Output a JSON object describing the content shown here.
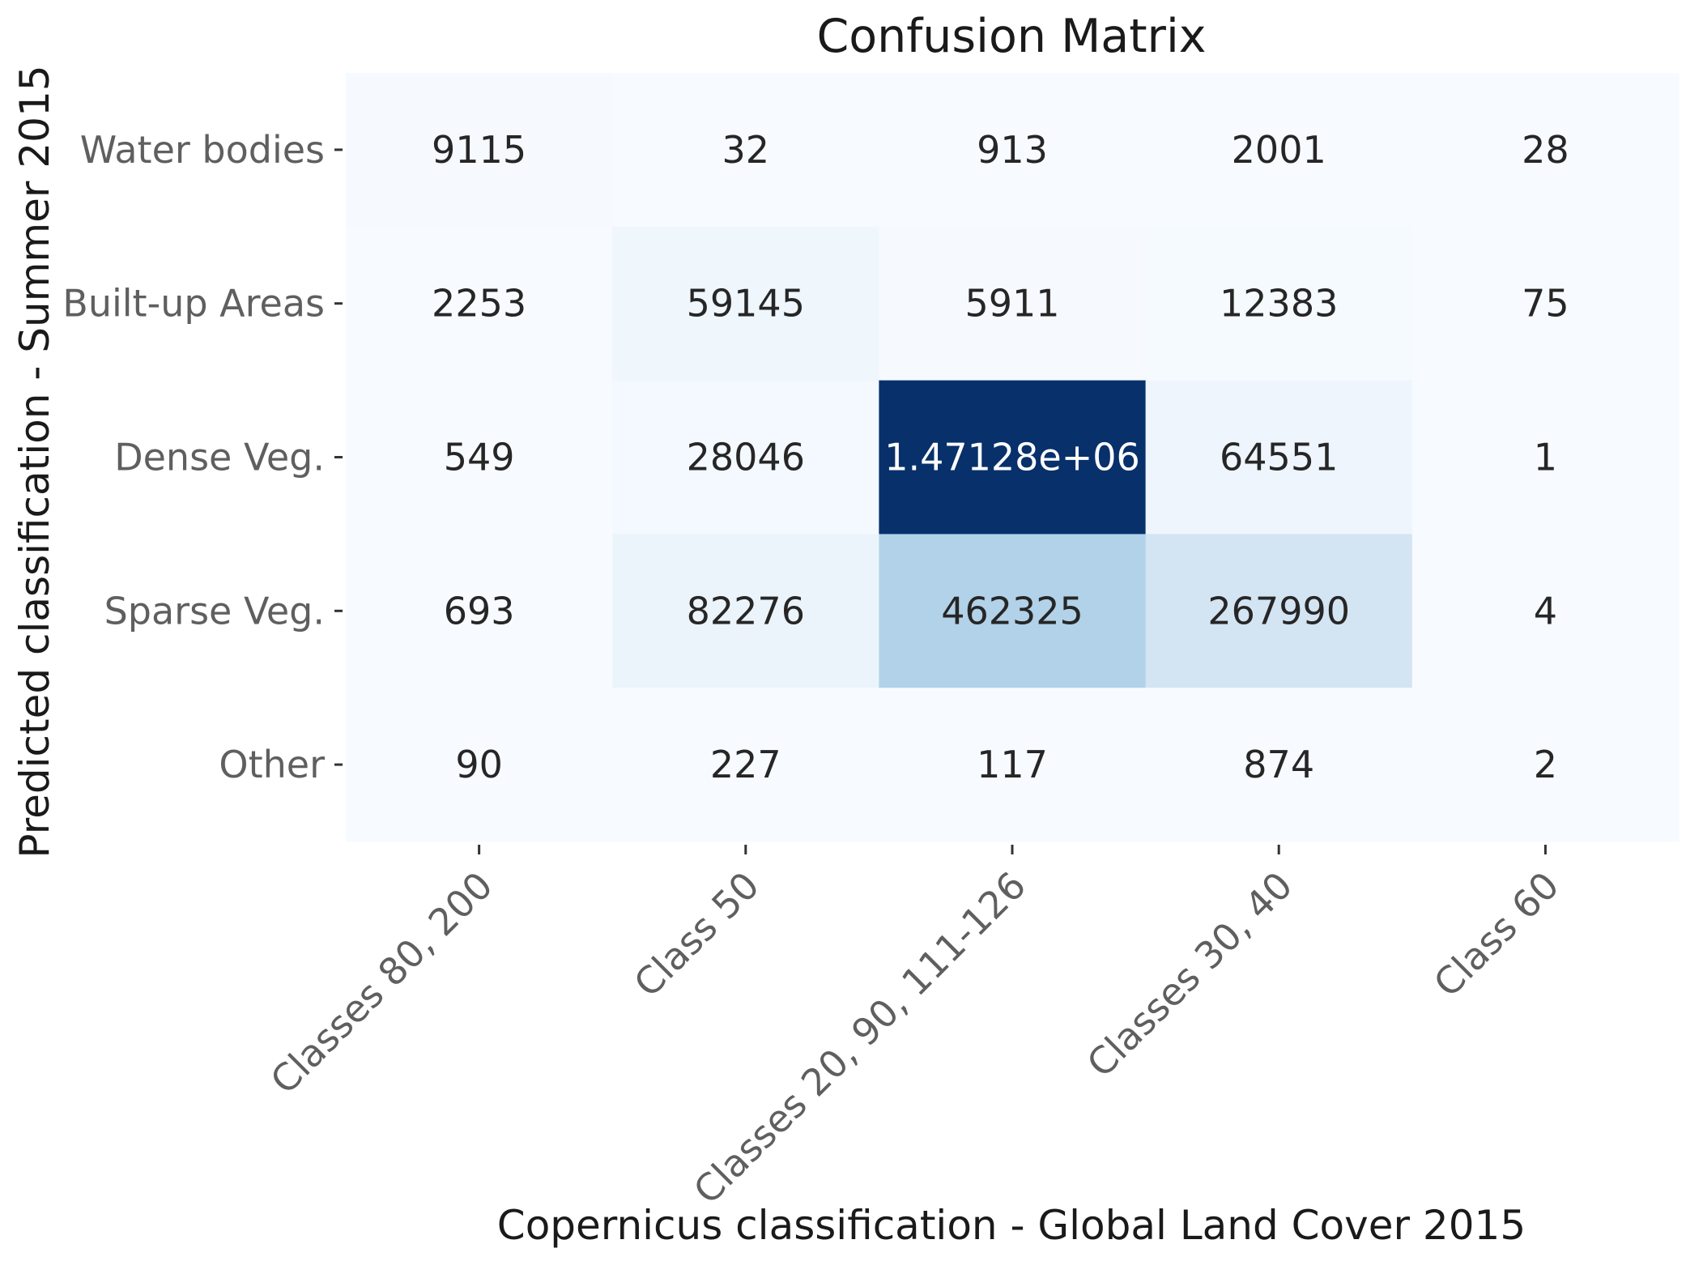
{
  "chart_data": {
    "type": "heatmap",
    "title": "Confusion Matrix",
    "xlabel": "Copernicus classification - Global Land Cover 2015",
    "ylabel": "Predicted classification - Summer 2015",
    "x_categories": [
      "Classes 80, 200",
      "Class 50",
      "Classes 20, 90, 111-126",
      "Classes 30, 40",
      "Class 60"
    ],
    "y_categories": [
      "Water bodies",
      "Built-up Areas",
      "Dense Veg.",
      "Sparse Veg.",
      "Other"
    ],
    "values": [
      [
        9115,
        32,
        913,
        2001,
        28
      ],
      [
        2253,
        59145,
        5911,
        12383,
        75
      ],
      [
        549,
        28046,
        1471280,
        64551,
        1
      ],
      [
        693,
        82276,
        462325,
        267990,
        4
      ],
      [
        90,
        227,
        117,
        874,
        2
      ]
    ],
    "value_labels": [
      [
        "9115",
        "32",
        "913",
        "2001",
        "28"
      ],
      [
        "2253",
        "59145",
        "5911",
        "12383",
        "75"
      ],
      [
        "549",
        "28046",
        "1.47128e+06",
        "64551",
        "1"
      ],
      [
        "693",
        "82276",
        "462325",
        "267990",
        "4"
      ],
      [
        "90",
        "227",
        "117",
        "874",
        "2"
      ]
    ],
    "colormap": "Blues",
    "colors": {
      "low": "#f7fbff",
      "high": "#08306b",
      "text_dark": "#262626",
      "text_light": "#ffffff"
    },
    "colorbar": false,
    "grid": false
  }
}
